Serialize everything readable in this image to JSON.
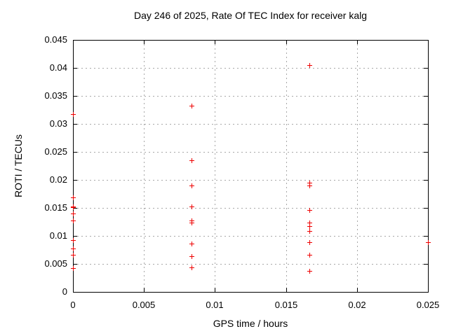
{
  "window": {
    "background_color": "#ffffff",
    "text_color": "#000000"
  },
  "chart_data": {
    "type": "scatter",
    "title": "Day 246 of 2025, Rate Of TEC Index for receiver kalg",
    "xlabel": "GPS time / hours",
    "ylabel": "ROTI / TECUs",
    "xlim": [
      0,
      0.025
    ],
    "ylim": [
      0,
      0.045
    ],
    "xticks": {
      "values": [
        0,
        0.005,
        0.01,
        0.015,
        0.02,
        0.025
      ],
      "labels": [
        "0",
        "0.005",
        "0.01",
        "0.015",
        "0.02",
        "0.025"
      ]
    },
    "yticks": {
      "values": [
        0,
        0.005,
        0.01,
        0.015,
        0.02,
        0.025,
        0.03,
        0.035,
        0.04,
        0.045
      ],
      "labels": [
        "0",
        "0.005",
        "0.01",
        "0.015",
        "0.02",
        "0.025",
        "0.03",
        "0.035",
        "0.04",
        "0.045"
      ]
    },
    "grid": {
      "show": true,
      "color": "#a8a8a8",
      "style": "dashed"
    },
    "legend": "none",
    "border_color": "#000000",
    "marker": {
      "shape": "plus",
      "color": "#ee0000",
      "size": 7
    },
    "series": [
      {
        "name": "roti",
        "color": "#ee0000",
        "points": [
          [
            0,
            0.0318
          ],
          [
            0,
            0.0169
          ],
          [
            0,
            0.0153
          ],
          [
            0,
            0.0151
          ],
          [
            0,
            0.014
          ],
          [
            0,
            0.0128
          ],
          [
            0,
            0.0092
          ],
          [
            0,
            0.0077
          ],
          [
            0,
            0.0066
          ],
          [
            0,
            0.0042
          ],
          [
            0.008333,
            0.0332
          ],
          [
            0.008333,
            0.0235
          ],
          [
            0.008333,
            0.019
          ],
          [
            0.008333,
            0.0152
          ],
          [
            0.008333,
            0.0128
          ],
          [
            0.008333,
            0.0124
          ],
          [
            0.008333,
            0.0086
          ],
          [
            0.008333,
            0.0064
          ],
          [
            0.008333,
            0.0044
          ],
          [
            0.016667,
            0.0405
          ],
          [
            0.016667,
            0.0195
          ],
          [
            0.016667,
            0.019
          ],
          [
            0.016667,
            0.0146
          ],
          [
            0.016667,
            0.0124
          ],
          [
            0.016667,
            0.0118
          ],
          [
            0.016667,
            0.0109
          ],
          [
            0.016667,
            0.0089
          ],
          [
            0.016667,
            0.0066
          ],
          [
            0.016667,
            0.0038
          ],
          [
            0.025,
            0.0089
          ]
        ]
      }
    ]
  }
}
